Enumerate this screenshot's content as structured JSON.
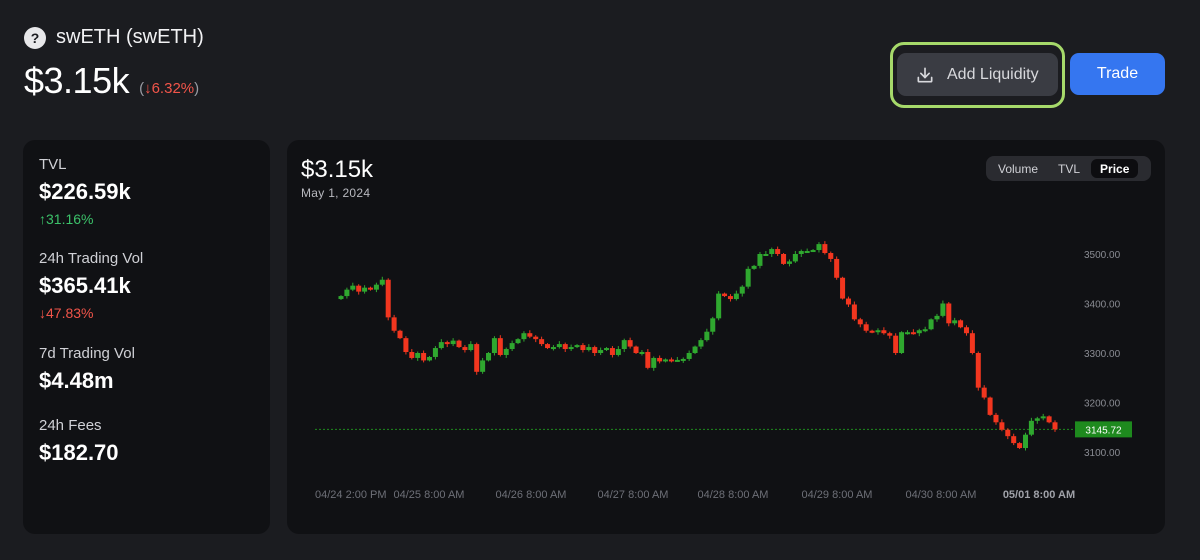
{
  "token": {
    "icon": "question-circle-icon",
    "name": "swETH (swETH)",
    "price": "$3.15k",
    "change_open": "(",
    "change_arrow": "↓",
    "change_value": "6.32%",
    "change_close": ")"
  },
  "actions": {
    "add_liquidity_label": "Add Liquidity",
    "add_liquidity_icon": "download-icon",
    "trade_label": "Trade",
    "highlight_color": "#a6d96a"
  },
  "stats": {
    "tvl": {
      "label": "TVL",
      "value": "$226.59k",
      "arrow": "↑",
      "change": "31.16%"
    },
    "vol24h": {
      "label": "24h Trading Vol",
      "value": "$365.41k",
      "arrow": "↓",
      "change": "47.83%"
    },
    "vol7d": {
      "label": "7d Trading Vol",
      "value": "$4.48m"
    },
    "fees24h": {
      "label": "24h Fees",
      "value": "$182.70"
    }
  },
  "chart": {
    "price": "$3.15k",
    "date": "May 1, 2024",
    "tabs": [
      "Volume",
      "TVL",
      "Price"
    ],
    "active_tab": "Price",
    "colors": {
      "up": "#2fa82f",
      "down": "#f2361f",
      "last_bg": "#1e8a1e"
    }
  },
  "chart_data": {
    "type": "candlestick",
    "y_ticks": [
      "3500.00",
      "3400.00",
      "3300.00",
      "3200.00",
      "3100.00"
    ],
    "ylim": [
      3060,
      3560
    ],
    "last_price_label": "3145.72",
    "last_price": 3145.72,
    "x_ticks": [
      "04/24 2:00 PM",
      "04/25 8:00 AM",
      "04/26 8:00 AM",
      "04/27 8:00 AM",
      "04/28 8:00 AM",
      "04/29 8:00 AM",
      "04/30 8:00 AM",
      "05/01 8:00 AM"
    ],
    "x_tick_bold": "05/01 8:00 AM",
    "closes": [
      3415,
      3428,
      3436,
      3424,
      3432,
      3428,
      3438,
      3448,
      3372,
      3345,
      3330,
      3302,
      3290,
      3300,
      3285,
      3292,
      3310,
      3322,
      3318,
      3325,
      3312,
      3306,
      3318,
      3262,
      3285,
      3300,
      3330,
      3296,
      3308,
      3320,
      3328,
      3340,
      3333,
      3328,
      3318,
      3310,
      3312,
      3318,
      3308,
      3312,
      3316,
      3306,
      3312,
      3300,
      3306,
      3310,
      3296,
      3308,
      3326,
      3313,
      3300,
      3302,
      3270,
      3290,
      3283,
      3287,
      3286,
      3286,
      3288,
      3300,
      3313,
      3326,
      3343,
      3370,
      3420,
      3415,
      3409,
      3420,
      3434,
      3470,
      3476,
      3500,
      3500,
      3510,
      3500,
      3480,
      3485,
      3500,
      3506,
      3506,
      3508,
      3520,
      3502,
      3490,
      3452,
      3410,
      3398,
      3368,
      3358,
      3345,
      3342,
      3346,
      3340,
      3335,
      3300,
      3342,
      3342,
      3340,
      3346,
      3348,
      3368,
      3375,
      3400,
      3360,
      3366,
      3352,
      3340,
      3300,
      3230,
      3210,
      3175,
      3160,
      3145,
      3132,
      3118,
      3108,
      3135,
      3163,
      3168,
      3172,
      3160,
      3145.72
    ]
  }
}
